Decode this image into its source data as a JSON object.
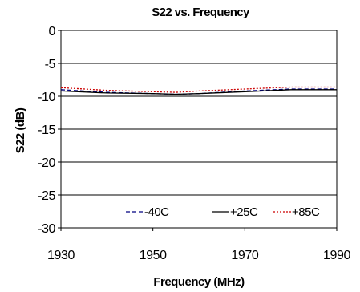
{
  "chart_data": {
    "type": "line",
    "title": "S22 vs. Frequency",
    "xlabel": "Frequency (MHz)",
    "ylabel": "S22 (dB)",
    "xlim": [
      1930,
      1990
    ],
    "ylim": [
      -30,
      0
    ],
    "x_ticks": [
      1930,
      1950,
      1970,
      1990
    ],
    "y_ticks": [
      0,
      -5,
      -10,
      -15,
      -20,
      -25,
      -30
    ],
    "grid": "horizontal",
    "legend_position": "bottom-right-inside",
    "x": [
      1930,
      1940,
      1950,
      1955,
      1960,
      1970,
      1980,
      1990
    ],
    "series": [
      {
        "name": "-40C",
        "color": "#000080",
        "line_style": "dashed",
        "values": [
          -9.0,
          -9.4,
          -9.6,
          -9.7,
          -9.6,
          -9.2,
          -8.9,
          -8.9
        ]
      },
      {
        "name": "+25C",
        "color": "#000000",
        "line_style": "solid",
        "values": [
          -9.2,
          -9.5,
          -9.6,
          -9.7,
          -9.6,
          -9.3,
          -9.0,
          -9.0
        ]
      },
      {
        "name": "+85C",
        "color": "#cc0000",
        "line_style": "dotted",
        "values": [
          -8.7,
          -9.1,
          -9.3,
          -9.4,
          -9.2,
          -8.9,
          -8.6,
          -8.6
        ]
      }
    ]
  }
}
